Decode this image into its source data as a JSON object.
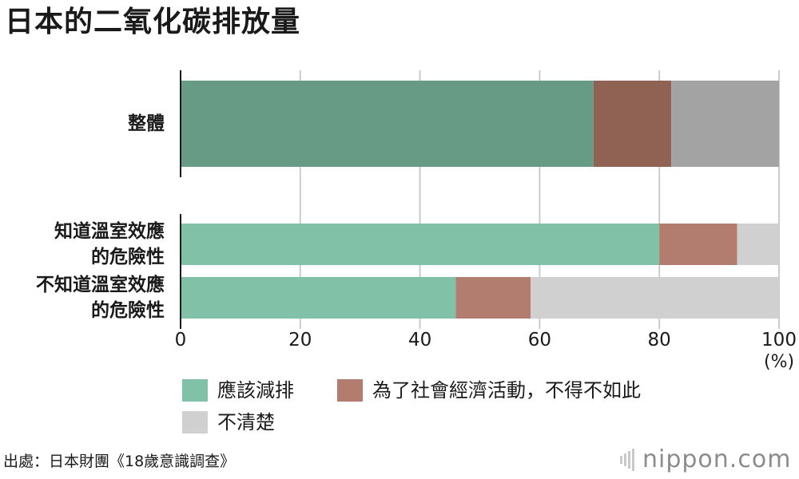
{
  "chart_data": {
    "type": "bar",
    "title": "日本的二氧化碳排放量",
    "categories": [
      [
        "整體"
      ],
      [
        "知道溫室效應",
        "的危險性"
      ],
      [
        "不知道溫室效應",
        "的危險性"
      ]
    ],
    "series": [
      {
        "name": "應該減排",
        "values": [
          69,
          80,
          46
        ]
      },
      {
        "name": "為了社會經濟活動，不得不如此",
        "values": [
          13,
          13,
          12.5
        ]
      },
      {
        "name": "不清楚",
        "values": [
          18,
          7,
          41.5
        ]
      }
    ],
    "bar_colors": [
      [
        "#679b86",
        "#8f6253",
        "#a3a3a3"
      ],
      [
        "#80c1a8",
        "#b27d6e",
        "#d0d0d0"
      ],
      [
        "#80c1a8",
        "#b27d6e",
        "#d0d0d0"
      ]
    ],
    "legend_colors": [
      "#80c1a8",
      "#b27d6e",
      "#d0d0d0"
    ],
    "xlim": [
      0,
      100
    ],
    "xticks": [
      "0",
      "20",
      "40",
      "60",
      "80",
      "100"
    ],
    "x_unit": "(%)",
    "grid": true,
    "orientation": "horizontal",
    "stacked": true
  },
  "source": "出處：日本財團《18歲意識調查》",
  "brand": "nippon.com"
}
